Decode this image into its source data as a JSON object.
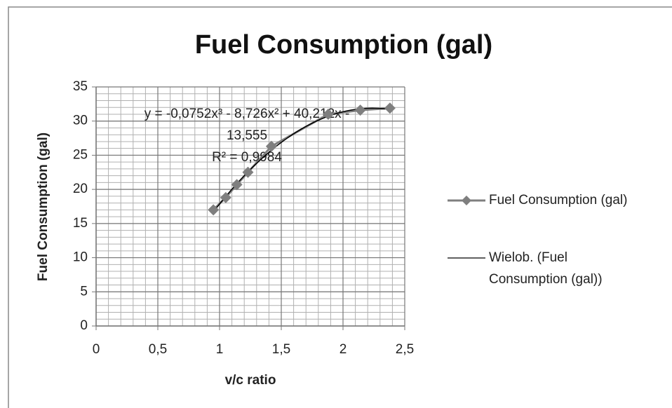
{
  "chart_data": {
    "type": "scatter",
    "title": "Fuel Consumption (gal)",
    "x_label": "v/c ratio",
    "y_label": "Fuel Consumption (gal)",
    "series": [
      {
        "name": "Fuel Consumption (gal)",
        "color": "#7f7f7f",
        "x": [
          0.95,
          1.05,
          1.14,
          1.23,
          1.42,
          1.88,
          2.14,
          2.38
        ],
        "values": [
          17,
          18.8,
          20.7,
          22.5,
          26.3,
          31,
          31.6,
          31.9
        ]
      }
    ],
    "trendline": {
      "name": "Wielob. (Fuel Consumption (gal))",
      "color": "#000000",
      "coefficients": [
        -0.0752,
        -8.726,
        40.212,
        -13.555
      ],
      "label_lines": [
        "y = -0,0752x³ - 8,726x² + 40,212x -",
        "13,555",
        "R² = 0,9984"
      ]
    },
    "xlim": [
      0,
      2.5
    ],
    "xticks": [
      0,
      {
        "value": 0.5,
        "label": "0,5"
      },
      1,
      {
        "value": 1.5,
        "label": "1,5"
      },
      2,
      {
        "value": 2.5,
        "label": "2,5"
      }
    ],
    "ylim": [
      0,
      35
    ],
    "yticks": [
      0,
      5,
      10,
      15,
      20,
      25,
      30,
      35
    ],
    "grid": true,
    "x_minor_step": 0.1,
    "y_minor_step": 1,
    "legend": "right"
  }
}
